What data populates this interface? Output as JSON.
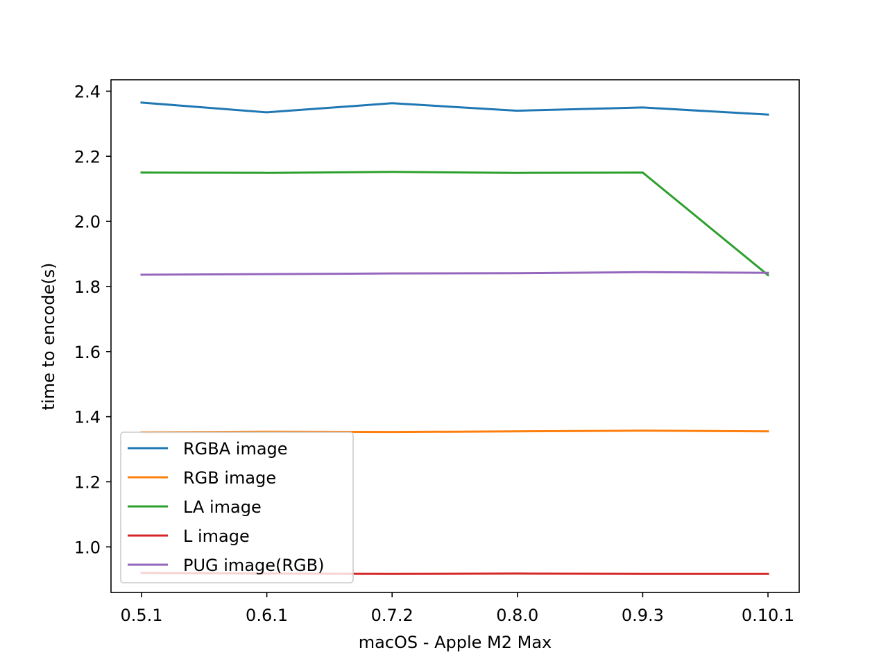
{
  "chart_data": {
    "type": "line",
    "title": "",
    "xlabel": "macOS - Apple M2 Max",
    "ylabel": "time to encode(s)",
    "categories": [
      "0.5.1",
      "0.6.1",
      "0.7.2",
      "0.8.0",
      "0.9.3",
      "0.10.1"
    ],
    "ylim": [
      0.86,
      2.435
    ],
    "yticks": [
      1.0,
      1.2,
      1.4,
      1.6,
      1.8,
      2.0,
      2.2,
      2.4
    ],
    "ytick_labels": [
      "1.0",
      "1.2",
      "1.4",
      "1.6",
      "1.8",
      "2.0",
      "2.2",
      "2.4"
    ],
    "grid": false,
    "legend_position": "lower-left",
    "series": [
      {
        "name": "RGBA image",
        "color": "#1f77b4",
        "values": [
          2.365,
          2.335,
          2.363,
          2.34,
          2.35,
          2.328
        ]
      },
      {
        "name": "RGB image",
        "color": "#ff7f0e",
        "values": [
          1.352,
          1.354,
          1.353,
          1.355,
          1.357,
          1.355
        ]
      },
      {
        "name": "LA image",
        "color": "#2ca02c",
        "values": [
          2.15,
          2.149,
          2.152,
          2.149,
          2.15,
          1.835
        ]
      },
      {
        "name": "L image",
        "color": "#d62728",
        "values": [
          0.92,
          0.918,
          0.917,
          0.918,
          0.917,
          0.917
        ]
      },
      {
        "name": "PUG image(RGB)",
        "color": "#9467bd",
        "values": [
          1.836,
          1.838,
          1.84,
          1.841,
          1.844,
          1.842
        ]
      }
    ]
  }
}
